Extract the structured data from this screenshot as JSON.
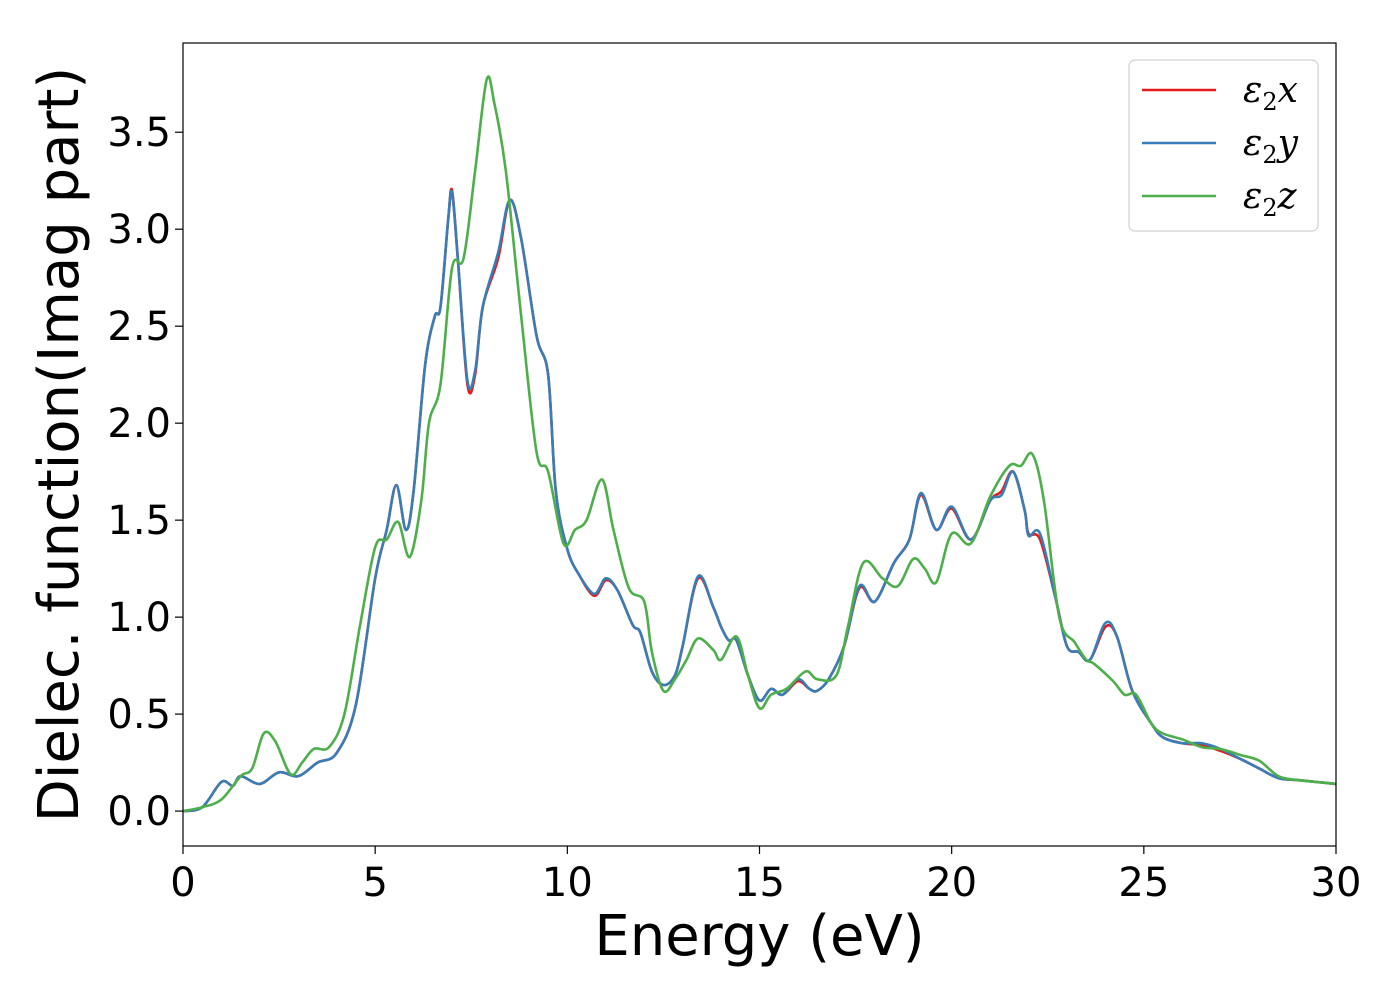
{
  "chart_data": {
    "type": "line",
    "title": "",
    "xlabel": "Energy (eV)",
    "ylabel": "Dielec. function(Imag part)",
    "xlim": [
      0,
      30
    ],
    "ylim": [
      -0.18,
      3.96
    ],
    "xticks": [
      0,
      5,
      10,
      15,
      20,
      25,
      30
    ],
    "xtick_labels": [
      "0",
      "5",
      "10",
      "15",
      "20",
      "25",
      "30"
    ],
    "yticks": [
      0.0,
      0.5,
      1.0,
      1.5,
      2.0,
      2.5,
      3.0,
      3.5
    ],
    "ytick_labels": [
      "0.0",
      "0.5",
      "1.0",
      "1.5",
      "2.0",
      "2.5",
      "3.0",
      "3.5"
    ],
    "grid": false,
    "legend_position": "top-right",
    "series": [
      {
        "name": "ε₂x",
        "legend": {
          "base": "ε",
          "sub": "2",
          "comp": "x"
        },
        "color": "#e41a1c",
        "points": [
          [
            0,
            0
          ],
          [
            0.5,
            0.02
          ],
          [
            1.0,
            0.15
          ],
          [
            1.3,
            0.13
          ],
          [
            1.5,
            0.18
          ],
          [
            2.0,
            0.14
          ],
          [
            2.5,
            0.2
          ],
          [
            3.0,
            0.18
          ],
          [
            3.5,
            0.25
          ],
          [
            4.0,
            0.3
          ],
          [
            4.5,
            0.55
          ],
          [
            5.0,
            1.2
          ],
          [
            5.3,
            1.45
          ],
          [
            5.55,
            1.68
          ],
          [
            5.8,
            1.45
          ],
          [
            6.0,
            1.65
          ],
          [
            6.3,
            2.3
          ],
          [
            6.55,
            2.55
          ],
          [
            6.7,
            2.6
          ],
          [
            6.9,
            3.05
          ],
          [
            7.0,
            3.2
          ],
          [
            7.15,
            2.85
          ],
          [
            7.4,
            2.2
          ],
          [
            7.6,
            2.25
          ],
          [
            7.8,
            2.6
          ],
          [
            8.2,
            2.85
          ],
          [
            8.5,
            3.15
          ],
          [
            8.8,
            2.95
          ],
          [
            9.2,
            2.45
          ],
          [
            9.5,
            2.25
          ],
          [
            9.7,
            1.65
          ],
          [
            10.0,
            1.35
          ],
          [
            10.3,
            1.22
          ],
          [
            10.7,
            1.11
          ],
          [
            11.0,
            1.19
          ],
          [
            11.3,
            1.14
          ],
          [
            11.7,
            0.96
          ],
          [
            11.9,
            0.92
          ],
          [
            12.2,
            0.72
          ],
          [
            12.5,
            0.65
          ],
          [
            12.8,
            0.7
          ],
          [
            13.0,
            0.85
          ],
          [
            13.4,
            1.2
          ],
          [
            13.8,
            1.05
          ],
          [
            14.0,
            0.95
          ],
          [
            14.2,
            0.88
          ],
          [
            14.4,
            0.88
          ],
          [
            14.7,
            0.7
          ],
          [
            15.0,
            0.57
          ],
          [
            15.3,
            0.63
          ],
          [
            15.6,
            0.6
          ],
          [
            16.0,
            0.67
          ],
          [
            16.3,
            0.63
          ],
          [
            16.5,
            0.62
          ],
          [
            16.8,
            0.68
          ],
          [
            17.2,
            0.85
          ],
          [
            17.6,
            1.15
          ],
          [
            18.0,
            1.08
          ],
          [
            18.5,
            1.28
          ],
          [
            18.9,
            1.4
          ],
          [
            19.2,
            1.63
          ],
          [
            19.6,
            1.45
          ],
          [
            20.0,
            1.56
          ],
          [
            20.5,
            1.4
          ],
          [
            21.0,
            1.6
          ],
          [
            21.3,
            1.65
          ],
          [
            21.6,
            1.75
          ],
          [
            21.9,
            1.55
          ],
          [
            22.0,
            1.43
          ],
          [
            22.3,
            1.4
          ],
          [
            22.7,
            1.1
          ],
          [
            23.0,
            0.85
          ],
          [
            23.3,
            0.82
          ],
          [
            23.6,
            0.78
          ],
          [
            24.0,
            0.95
          ],
          [
            24.3,
            0.9
          ],
          [
            24.7,
            0.62
          ],
          [
            25.2,
            0.45
          ],
          [
            25.5,
            0.38
          ],
          [
            26.0,
            0.35
          ],
          [
            26.5,
            0.34
          ],
          [
            27.0,
            0.31
          ],
          [
            27.5,
            0.27
          ],
          [
            28.0,
            0.22
          ],
          [
            28.5,
            0.17
          ],
          [
            29.0,
            0.16
          ],
          [
            29.5,
            0.15
          ],
          [
            30.0,
            0.14
          ]
        ]
      },
      {
        "name": "ε₂y",
        "legend": {
          "base": "ε",
          "sub": "2",
          "comp": "y"
        },
        "color": "#377eb8",
        "points": [
          [
            0,
            0
          ],
          [
            0.5,
            0.02
          ],
          [
            1.0,
            0.15
          ],
          [
            1.3,
            0.13
          ],
          [
            1.5,
            0.18
          ],
          [
            2.0,
            0.14
          ],
          [
            2.5,
            0.2
          ],
          [
            3.0,
            0.18
          ],
          [
            3.5,
            0.25
          ],
          [
            4.0,
            0.3
          ],
          [
            4.5,
            0.55
          ],
          [
            5.0,
            1.2
          ],
          [
            5.3,
            1.45
          ],
          [
            5.55,
            1.68
          ],
          [
            5.8,
            1.45
          ],
          [
            6.0,
            1.65
          ],
          [
            6.3,
            2.3
          ],
          [
            6.55,
            2.55
          ],
          [
            6.7,
            2.6
          ],
          [
            6.9,
            3.05
          ],
          [
            7.0,
            3.19
          ],
          [
            7.15,
            2.85
          ],
          [
            7.4,
            2.22
          ],
          [
            7.6,
            2.27
          ],
          [
            7.8,
            2.6
          ],
          [
            8.2,
            2.88
          ],
          [
            8.5,
            3.15
          ],
          [
            8.8,
            2.95
          ],
          [
            9.2,
            2.45
          ],
          [
            9.5,
            2.25
          ],
          [
            9.7,
            1.65
          ],
          [
            10.0,
            1.35
          ],
          [
            10.3,
            1.22
          ],
          [
            10.7,
            1.12
          ],
          [
            11.0,
            1.2
          ],
          [
            11.3,
            1.14
          ],
          [
            11.7,
            0.96
          ],
          [
            11.9,
            0.92
          ],
          [
            12.2,
            0.72
          ],
          [
            12.5,
            0.65
          ],
          [
            12.8,
            0.7
          ],
          [
            13.0,
            0.85
          ],
          [
            13.4,
            1.21
          ],
          [
            13.8,
            1.05
          ],
          [
            14.0,
            0.95
          ],
          [
            14.2,
            0.88
          ],
          [
            14.4,
            0.88
          ],
          [
            14.7,
            0.7
          ],
          [
            15.0,
            0.57
          ],
          [
            15.3,
            0.63
          ],
          [
            15.6,
            0.6
          ],
          [
            16.0,
            0.68
          ],
          [
            16.3,
            0.63
          ],
          [
            16.5,
            0.62
          ],
          [
            16.8,
            0.68
          ],
          [
            17.2,
            0.85
          ],
          [
            17.6,
            1.16
          ],
          [
            18.0,
            1.08
          ],
          [
            18.5,
            1.28
          ],
          [
            18.9,
            1.4
          ],
          [
            19.2,
            1.64
          ],
          [
            19.6,
            1.45
          ],
          [
            20.0,
            1.57
          ],
          [
            20.5,
            1.4
          ],
          [
            21.0,
            1.6
          ],
          [
            21.3,
            1.63
          ],
          [
            21.6,
            1.75
          ],
          [
            21.9,
            1.55
          ],
          [
            22.0,
            1.42
          ],
          [
            22.3,
            1.43
          ],
          [
            22.7,
            1.1
          ],
          [
            23.0,
            0.85
          ],
          [
            23.3,
            0.82
          ],
          [
            23.6,
            0.78
          ],
          [
            24.0,
            0.97
          ],
          [
            24.3,
            0.9
          ],
          [
            24.7,
            0.62
          ],
          [
            25.2,
            0.45
          ],
          [
            25.5,
            0.38
          ],
          [
            26.0,
            0.35
          ],
          [
            26.5,
            0.35
          ],
          [
            27.0,
            0.32
          ],
          [
            27.5,
            0.27
          ],
          [
            28.0,
            0.22
          ],
          [
            28.5,
            0.17
          ],
          [
            29.0,
            0.16
          ],
          [
            29.5,
            0.15
          ],
          [
            30.0,
            0.14
          ]
        ]
      },
      {
        "name": "ε₂z",
        "legend": {
          "base": "ε",
          "sub": "2",
          "comp": "z"
        },
        "color": "#4daf4a",
        "points": [
          [
            0,
            0
          ],
          [
            0.5,
            0.02
          ],
          [
            1.0,
            0.06
          ],
          [
            1.5,
            0.18
          ],
          [
            1.8,
            0.22
          ],
          [
            2.1,
            0.4
          ],
          [
            2.4,
            0.36
          ],
          [
            2.8,
            0.19
          ],
          [
            3.1,
            0.25
          ],
          [
            3.4,
            0.32
          ],
          [
            3.8,
            0.33
          ],
          [
            4.2,
            0.5
          ],
          [
            4.6,
            0.95
          ],
          [
            5.0,
            1.36
          ],
          [
            5.3,
            1.4
          ],
          [
            5.6,
            1.49
          ],
          [
            5.9,
            1.31
          ],
          [
            6.2,
            1.6
          ],
          [
            6.4,
            2.0
          ],
          [
            6.7,
            2.2
          ],
          [
            7.0,
            2.8
          ],
          [
            7.3,
            2.85
          ],
          [
            7.6,
            3.3
          ],
          [
            7.9,
            3.77
          ],
          [
            8.1,
            3.65
          ],
          [
            8.4,
            3.3
          ],
          [
            8.8,
            2.55
          ],
          [
            9.2,
            1.85
          ],
          [
            9.5,
            1.75
          ],
          [
            9.9,
            1.38
          ],
          [
            10.2,
            1.45
          ],
          [
            10.5,
            1.5
          ],
          [
            10.9,
            1.71
          ],
          [
            11.2,
            1.45
          ],
          [
            11.6,
            1.15
          ],
          [
            12.0,
            1.08
          ],
          [
            12.2,
            0.82
          ],
          [
            12.5,
            0.62
          ],
          [
            12.8,
            0.68
          ],
          [
            13.1,
            0.78
          ],
          [
            13.4,
            0.89
          ],
          [
            13.8,
            0.83
          ],
          [
            14.0,
            0.78
          ],
          [
            14.4,
            0.9
          ],
          [
            14.7,
            0.7
          ],
          [
            15.0,
            0.53
          ],
          [
            15.3,
            0.6
          ],
          [
            15.7,
            0.63
          ],
          [
            16.2,
            0.72
          ],
          [
            16.5,
            0.68
          ],
          [
            17.0,
            0.7
          ],
          [
            17.3,
            0.95
          ],
          [
            17.7,
            1.28
          ],
          [
            18.2,
            1.2
          ],
          [
            18.6,
            1.16
          ],
          [
            19.0,
            1.3
          ],
          [
            19.3,
            1.25
          ],
          [
            19.6,
            1.18
          ],
          [
            20.0,
            1.43
          ],
          [
            20.5,
            1.38
          ],
          [
            21.0,
            1.62
          ],
          [
            21.5,
            1.78
          ],
          [
            21.8,
            1.78
          ],
          [
            22.1,
            1.84
          ],
          [
            22.4,
            1.6
          ],
          [
            22.8,
            1.0
          ],
          [
            23.2,
            0.87
          ],
          [
            23.5,
            0.78
          ],
          [
            23.7,
            0.76
          ],
          [
            24.2,
            0.67
          ],
          [
            24.5,
            0.6
          ],
          [
            24.8,
            0.6
          ],
          [
            25.2,
            0.45
          ],
          [
            25.5,
            0.4
          ],
          [
            26.0,
            0.37
          ],
          [
            26.5,
            0.33
          ],
          [
            27.0,
            0.32
          ],
          [
            27.5,
            0.29
          ],
          [
            28.0,
            0.26
          ],
          [
            28.5,
            0.18
          ],
          [
            29.0,
            0.16
          ],
          [
            29.5,
            0.15
          ],
          [
            30.0,
            0.14
          ]
        ]
      }
    ]
  }
}
